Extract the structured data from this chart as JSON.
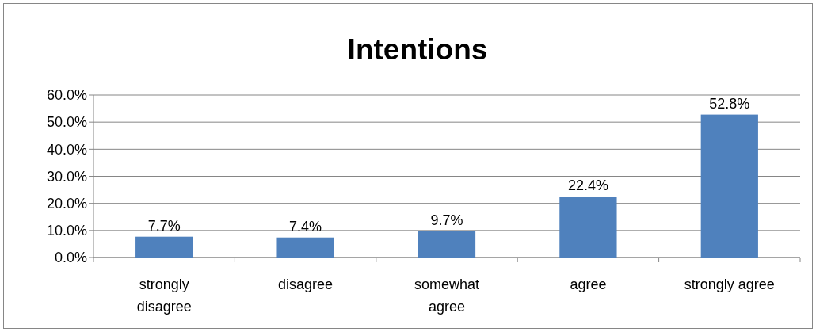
{
  "chart_data": {
    "type": "bar",
    "title": "Intentions",
    "categories": [
      "strongly disagree",
      "disagree",
      "somewhat agree",
      "agree",
      "strongly agree"
    ],
    "values": [
      7.7,
      7.4,
      9.7,
      22.4,
      52.8
    ],
    "value_labels": [
      "7.7%",
      "7.4%",
      "9.7%",
      "22.4%",
      "52.8%"
    ],
    "color": "#4f81bd",
    "ylim": [
      0,
      60
    ],
    "yticks": [
      {
        "value": 0,
        "label": "0.0%"
      },
      {
        "value": 10,
        "label": "10.0%"
      },
      {
        "value": 20,
        "label": "20.0%"
      },
      {
        "value": 30,
        "label": "30.0%"
      },
      {
        "value": 40,
        "label": "40.0%"
      },
      {
        "value": 50,
        "label": "50.0%"
      },
      {
        "value": 60,
        "label": "60.0%"
      }
    ],
    "grid": "y"
  }
}
